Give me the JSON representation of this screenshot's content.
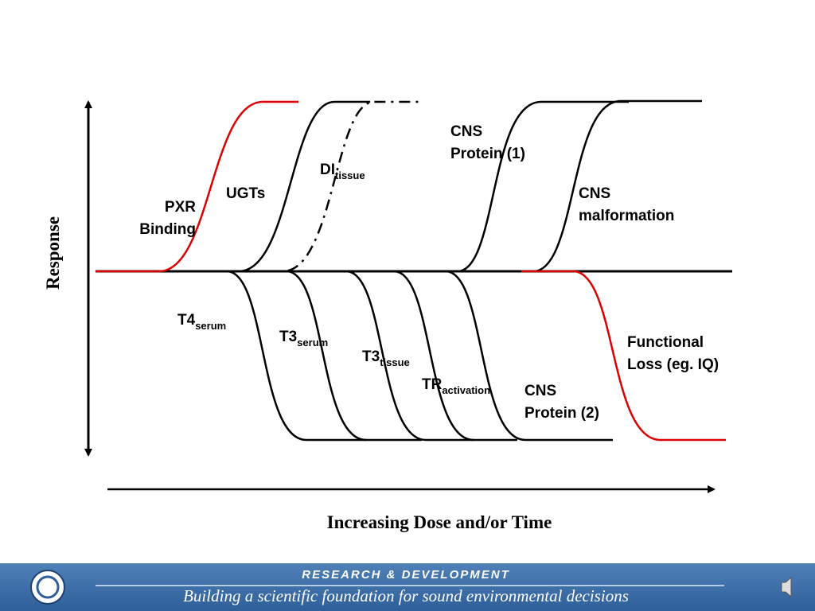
{
  "axes": {
    "y_label": "Response",
    "x_label": "Increasing Dose and/or Time"
  },
  "labels": [
    {
      "lines": [
        "PXR",
        "Binding"
      ]
    },
    {
      "lines": [
        "UGTs"
      ]
    },
    {
      "main": "DI",
      "sub": "tissue"
    },
    {
      "lines": [
        "CNS",
        "Protein (1)"
      ]
    },
    {
      "lines": [
        "CNS",
        "malformation"
      ]
    },
    {
      "main": "T4",
      "sub": "serum"
    },
    {
      "main": "T3",
      "sub": "serum"
    },
    {
      "main": "T3",
      "sub": "tissue"
    },
    {
      "main": "TR",
      "sub": "activation"
    },
    {
      "lines": [
        "CNS",
        "Protein (2)"
      ]
    },
    {
      "lines": [
        "Functional",
        "Loss (eg. IQ)"
      ]
    }
  ],
  "footer": {
    "title": "RESEARCH &  DEVELOPMENT",
    "tagline": "Building a scientific foundation for sound environmental decisions"
  }
}
